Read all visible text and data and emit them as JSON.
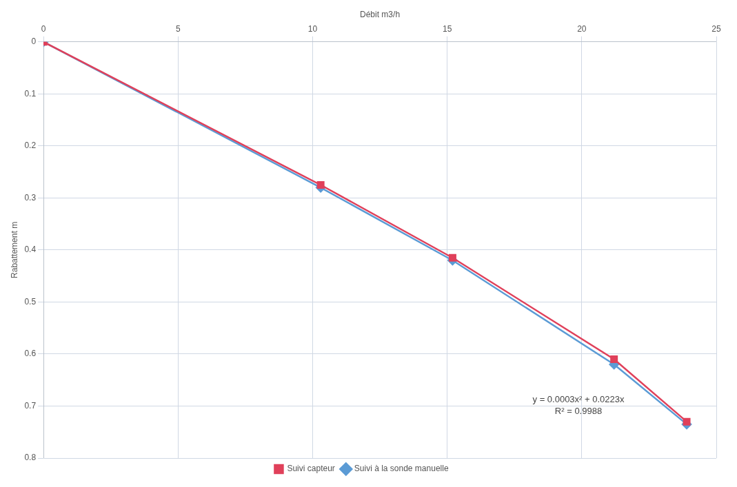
{
  "chart_data": {
    "type": "line",
    "xlabel": "Débit m3/h",
    "ylabel": "Rabattement m",
    "xlim": [
      0,
      25
    ],
    "xticks": [
      0,
      5,
      10,
      15,
      20,
      25
    ],
    "ylim": [
      0.8,
      0
    ],
    "yticks": [
      0,
      0.1,
      0.2,
      0.3,
      0.4,
      0.5,
      0.6,
      0.7,
      0.8
    ],
    "grid": true,
    "legend": "bottom",
    "line_style": "solid",
    "series": [
      {
        "name": "Suivi à la sonde manuelle",
        "color": "#5b9bd5",
        "marker": "diamond",
        "x": [
          0,
          10.3,
          15.2,
          21.2,
          23.9
        ],
        "values": [
          0,
          0.28,
          0.42,
          0.62,
          0.735
        ]
      },
      {
        "name": "Suivi capteur",
        "color": "#e0405a",
        "marker": "square",
        "x": [
          0,
          10.3,
          15.2,
          21.2,
          23.9
        ],
        "values": [
          0,
          0.275,
          0.415,
          0.61,
          0.73
        ]
      }
    ],
    "annotations": [
      "y = 0.0003x² + 0.0223x",
      "R² = 0.9988"
    ]
  }
}
